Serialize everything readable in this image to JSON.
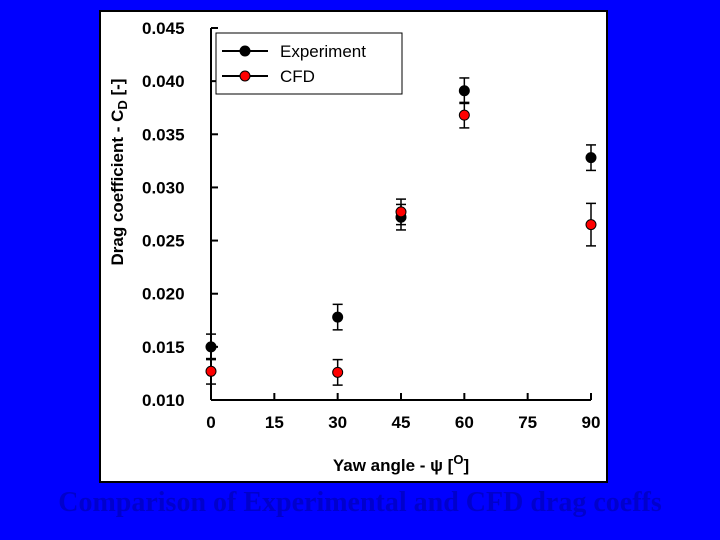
{
  "slide": {
    "caption": "Comparison of Experimental and CFD drag coeffs"
  },
  "chart_data": {
    "type": "scatter",
    "xlabel": "Yaw angle - ψ [O]",
    "ylabel": "Drag coefficient - CD [-]",
    "xlim": [
      0,
      90
    ],
    "ylim": [
      0.01,
      0.045
    ],
    "x_ticks": [
      0,
      15,
      30,
      45,
      60,
      75,
      90
    ],
    "x_tick_labels": [
      "0",
      "15",
      "30",
      "45",
      "60",
      "75",
      "90"
    ],
    "y_ticks": [
      0.01,
      0.015,
      0.02,
      0.025,
      0.03,
      0.035,
      0.04,
      0.045
    ],
    "y_tick_labels": [
      "0.010",
      "0.015",
      "0.020",
      "0.025",
      "0.030",
      "0.035",
      "0.040",
      "0.045"
    ],
    "grid": false,
    "legend_position": "top-left",
    "error_bars": true,
    "series": [
      {
        "name": "Experiment",
        "color": "#000000",
        "x": [
          0,
          30,
          45,
          60,
          90
        ],
        "y": [
          0.015,
          0.0178,
          0.0272,
          0.0391,
          0.0328
        ],
        "error": [
          0.0012,
          0.0012,
          0.0012,
          0.0012,
          0.0012
        ]
      },
      {
        "name": "CFD",
        "color": "#FF0000",
        "x": [
          0,
          30,
          45,
          60,
          90
        ],
        "y": [
          0.0127,
          0.0126,
          0.0277,
          0.0368,
          0.0265
        ],
        "error": [
          0.0012,
          0.0012,
          0.0012,
          0.0012,
          0.002
        ]
      }
    ]
  }
}
